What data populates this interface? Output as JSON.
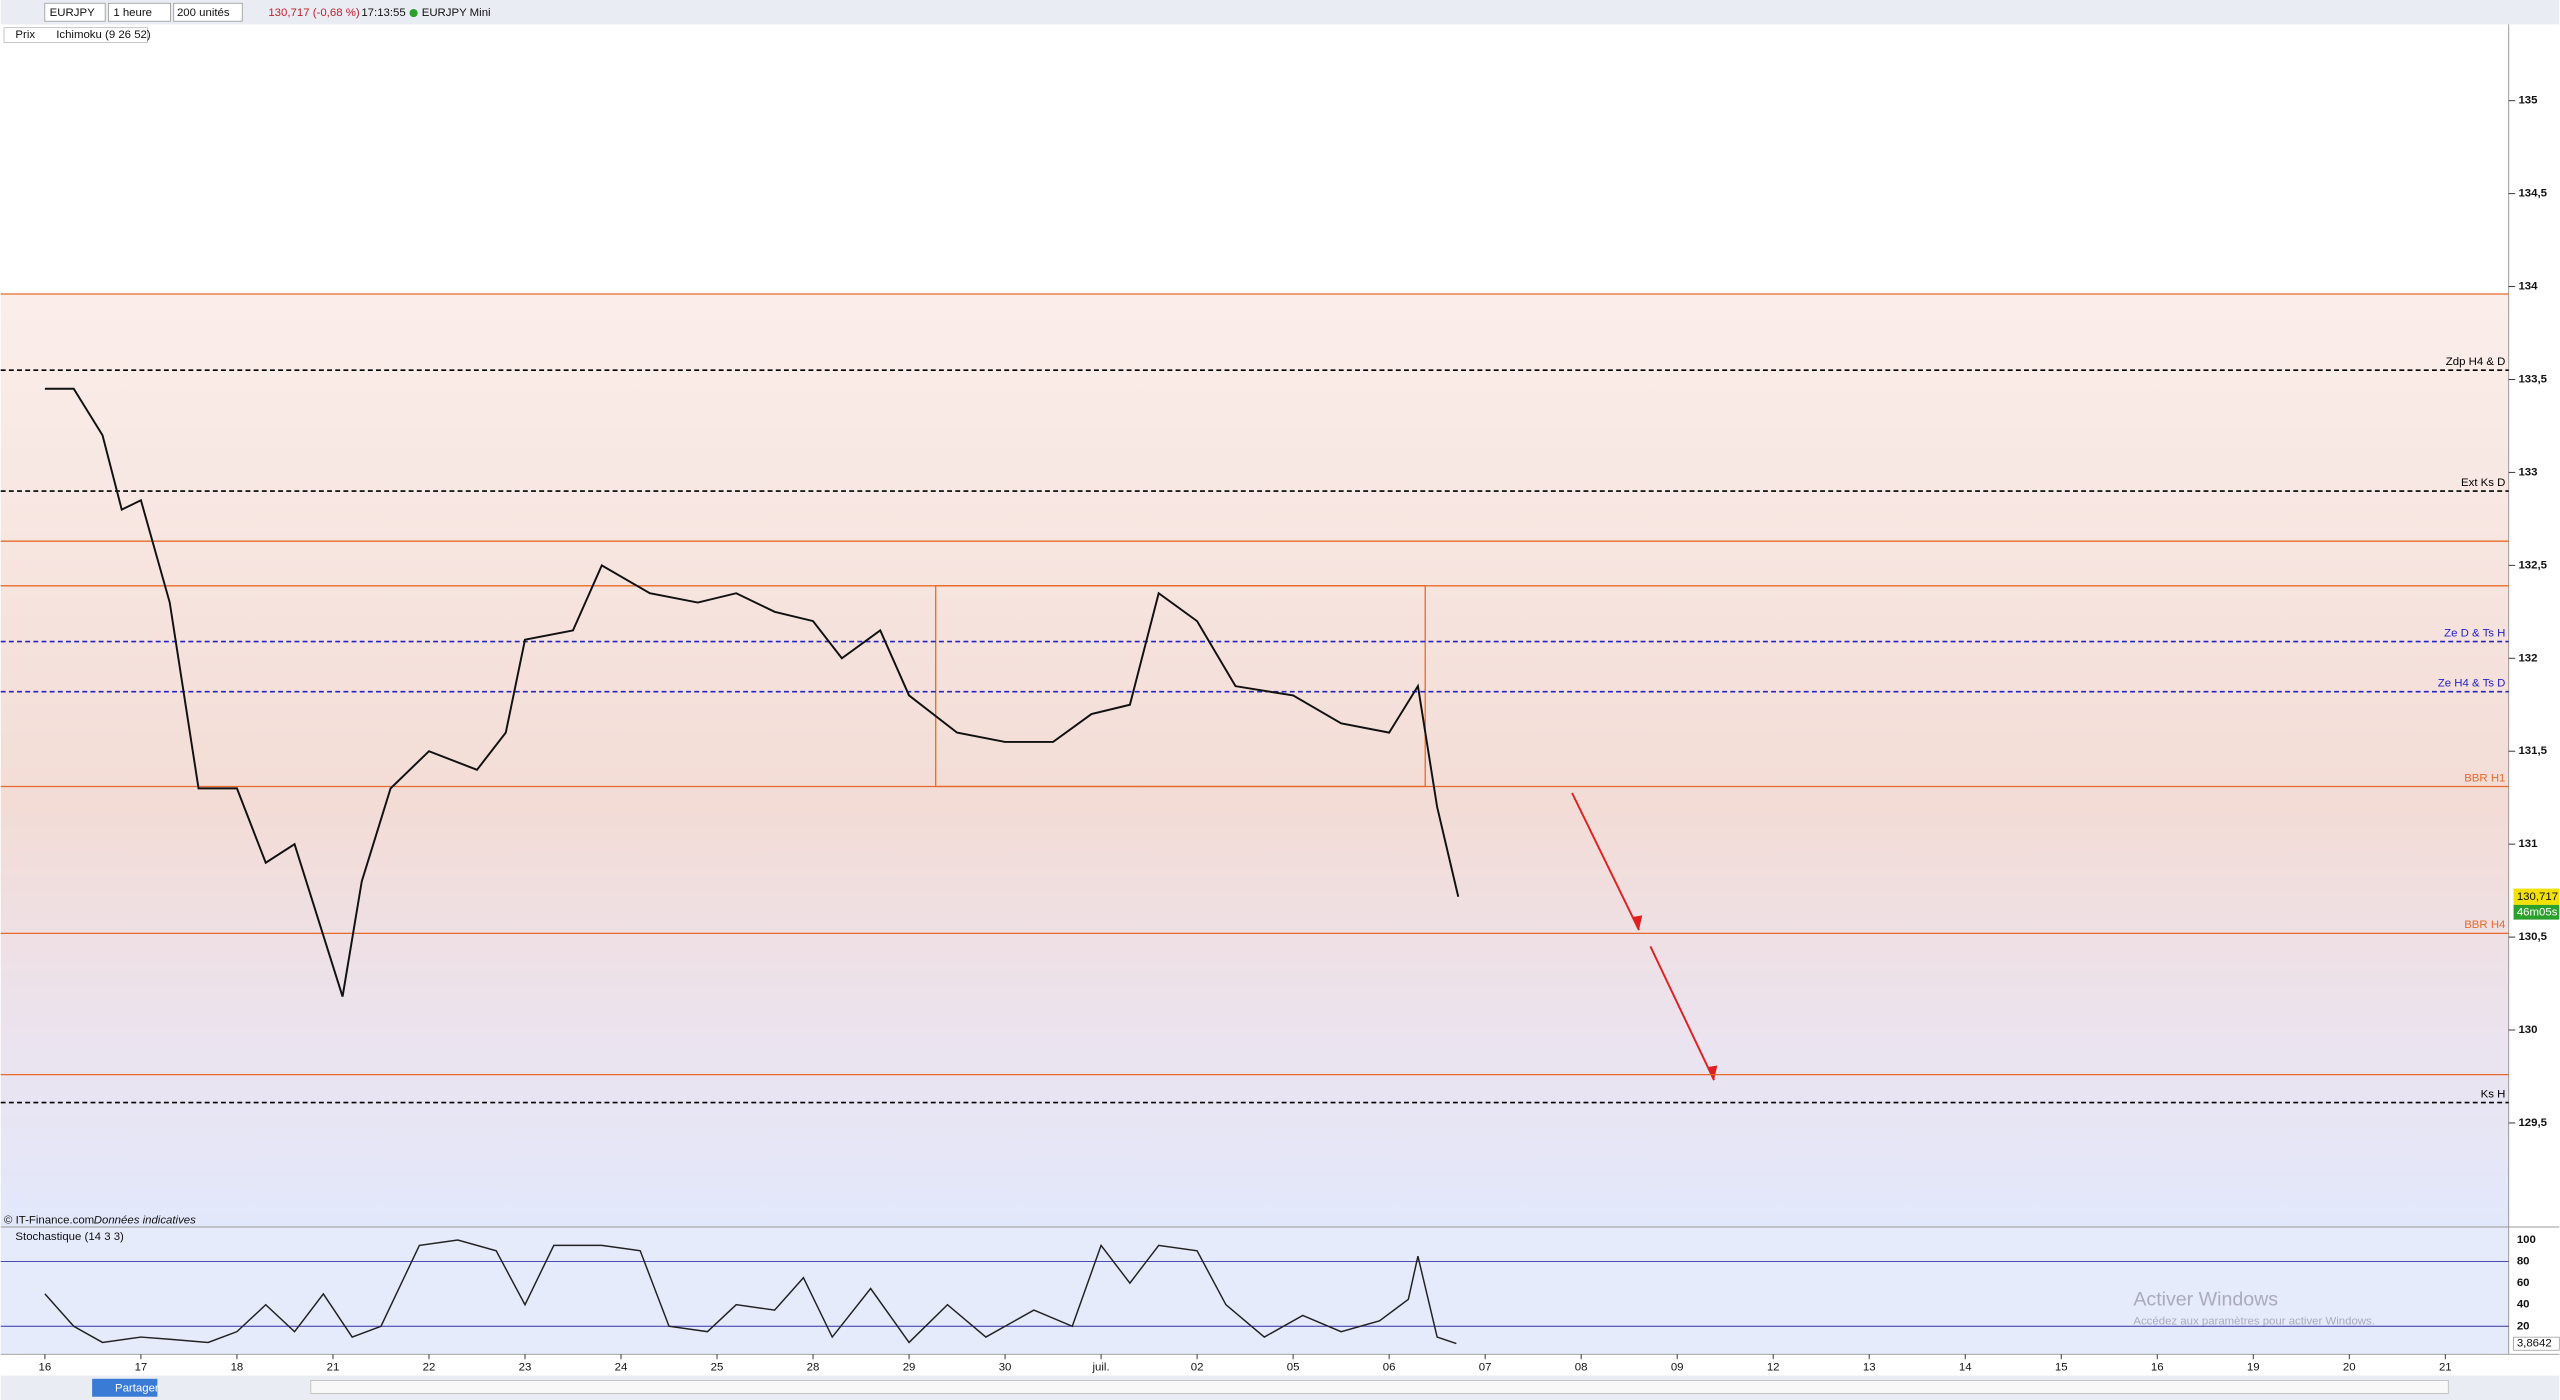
{
  "toolbar": {
    "symbol": "EURJPY",
    "timeframe": "1 heure",
    "units": "200 unités",
    "quote": "130,717 (-0,68 %)",
    "time": "17:13:55",
    "instrument": "EURJPY Mini"
  },
  "legend": [
    "Prix",
    "Ichimoku (9 26 52)"
  ],
  "source": "© IT-Finance.com",
  "source_note": "Données indicatives",
  "watermark": [
    "Activer Windows",
    "Accédez aux paramètres pour activer Windows."
  ],
  "bottom_bar": {
    "share": "Partager"
  },
  "chart_data": {
    "type": "line",
    "xlim": [
      -0.46,
      25.66
    ],
    "xticks": [
      {
        "value": 0,
        "label": "16"
      },
      {
        "value": 1,
        "label": "17"
      },
      {
        "value": 2,
        "label": "18"
      },
      {
        "value": 3,
        "label": "21"
      },
      {
        "value": 4,
        "label": "22"
      },
      {
        "value": 5,
        "label": "23"
      },
      {
        "value": 6,
        "label": "24"
      },
      {
        "value": 7,
        "label": "25"
      },
      {
        "value": 8,
        "label": "28"
      },
      {
        "value": 9,
        "label": "29"
      },
      {
        "value": 10,
        "label": "30"
      },
      {
        "value": 11,
        "label": "juil."
      },
      {
        "value": 12,
        "label": "02"
      },
      {
        "value": 13,
        "label": "05"
      },
      {
        "value": 14,
        "label": "06"
      },
      {
        "value": 15,
        "label": "07"
      },
      {
        "value": 16,
        "label": "08"
      },
      {
        "value": 17,
        "label": "09"
      },
      {
        "value": 18,
        "label": "12"
      },
      {
        "value": 19,
        "label": "13"
      },
      {
        "value": 20,
        "label": "14"
      },
      {
        "value": 21,
        "label": "15"
      },
      {
        "value": 22,
        "label": "16"
      },
      {
        "value": 23,
        "label": "19"
      },
      {
        "value": 24,
        "label": "20"
      },
      {
        "value": 25,
        "label": "21"
      }
    ],
    "ylim": [
      128.94,
      135.41
    ],
    "yticks": [
      {
        "value": 129.5,
        "label": "129,5"
      },
      130,
      {
        "value": 130.5,
        "label": "130,5"
      },
      131,
      {
        "value": 131.5,
        "label": "131,5"
      },
      132,
      {
        "value": 132.5,
        "label": "132,5"
      },
      133,
      {
        "value": 133.5,
        "label": "133,5"
      },
      134,
      {
        "value": 134.5,
        "label": "134,5"
      },
      135
    ],
    "x": [
      0,
      0.3,
      0.6,
      0.8,
      1,
      1.3,
      1.6,
      2,
      2.3,
      2.6,
      3.1,
      3.3,
      3.6,
      4,
      4.5,
      4.8,
      5,
      5.5,
      5.8,
      6.3,
      6.8,
      7.2,
      7.6,
      8,
      8.3,
      8.7,
      9,
      9.5,
      10,
      10.5,
      10.9,
      11.3,
      11.6,
      12,
      12.4,
      13,
      13.5,
      14,
      14.3,
      14.5,
      14.72
    ],
    "series": [
      {
        "name": "EURJPY",
        "color": "#111111",
        "values": [
          133.45,
          133.45,
          133.2,
          132.8,
          132.85,
          132.3,
          131.3,
          131.3,
          130.9,
          131,
          130.18,
          130.8,
          131.3,
          131.5,
          131.4,
          131.6,
          132.1,
          132.15,
          132.5,
          132.35,
          132.3,
          132.35,
          132.25,
          132.2,
          132,
          132.15,
          131.8,
          131.6,
          131.55,
          131.55,
          131.7,
          131.75,
          132.35,
          132.2,
          131.85,
          131.8,
          131.65,
          131.6,
          131.85,
          131.2,
          130.717
        ]
      }
    ],
    "last_price": {
      "value": 130.717,
      "label": "130,717"
    },
    "countdown": "46m05s",
    "levels": [
      {
        "label": "Zdp H4 & D",
        "value": 133.55,
        "color": "#000000"
      },
      {
        "label": "Ext Ks D",
        "value": 132.9,
        "color": "#000000"
      },
      {
        "label": "Ze D & Ts H",
        "value": 132.09,
        "color": "#2323c8"
      },
      {
        "label": "Ze H4 & Ts D",
        "value": 131.82,
        "color": "#2323c8"
      },
      {
        "label": "BBR H1",
        "value": 131.31,
        "color": "#e86a2a"
      },
      {
        "label": "BBR H4",
        "value": 130.52,
        "color": "#e86a2a"
      },
      {
        "label": "Ks H",
        "value": 129.61,
        "color": "#000000"
      }
    ],
    "zones": [
      133.96,
      132.63,
      132.39,
      129.76
    ],
    "stochastic": {
      "title": "Stochastique (14 3 3)",
      "color": "#222222",
      "ylim": [
        -6,
        112
      ],
      "yticks": [
        20,
        40,
        60,
        80,
        100
      ],
      "x": [
        0,
        0.3,
        0.6,
        1,
        1.3,
        1.7,
        2,
        2.3,
        2.6,
        2.9,
        3.2,
        3.5,
        3.9,
        4.3,
        4.7,
        5,
        5.3,
        5.8,
        6.2,
        6.5,
        6.9,
        7.2,
        7.6,
        7.9,
        8.2,
        8.6,
        9,
        9.4,
        9.8,
        10.3,
        10.7,
        11,
        11.3,
        11.6,
        12,
        12.3,
        12.7,
        13.1,
        13.5,
        13.9,
        14.2,
        14.3,
        14.5,
        14.7
      ],
      "values": [
        50,
        20,
        5,
        10,
        8,
        5,
        15,
        40,
        15,
        50,
        10,
        20,
        95,
        100,
        90,
        40,
        95,
        95,
        90,
        20,
        15,
        40,
        35,
        65,
        10,
        55,
        5,
        40,
        10,
        35,
        20,
        95,
        60,
        95,
        90,
        40,
        10,
        30,
        15,
        25,
        45,
        85,
        10,
        4
      ],
      "last": {
        "value": 3.8642,
        "label": "3,8642"
      }
    }
  }
}
